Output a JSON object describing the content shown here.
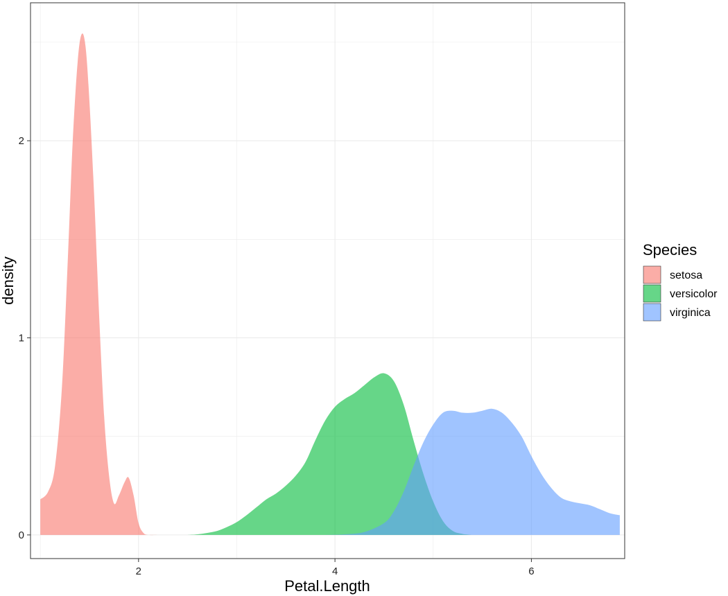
{
  "chart_data": {
    "type": "area",
    "xlabel": "Petal.Length",
    "ylabel": "density",
    "xlim": [
      0.9,
      6.95
    ],
    "ylim": [
      -0.12,
      2.7
    ],
    "x_ticks": [
      2,
      4,
      6
    ],
    "x_tick_labels": [
      "2",
      "4",
      "6"
    ],
    "y_ticks": [
      0,
      1,
      2
    ],
    "y_tick_labels": [
      "0",
      "1",
      "2"
    ],
    "grid": true,
    "legend": {
      "title": "Species",
      "position": "right"
    },
    "series": [
      {
        "name": "setosa",
        "color": "#F8766D",
        "points": [
          [
            1.0,
            0.18
          ],
          [
            1.08,
            0.22
          ],
          [
            1.15,
            0.35
          ],
          [
            1.22,
            0.75
          ],
          [
            1.28,
            1.4
          ],
          [
            1.33,
            2.0
          ],
          [
            1.38,
            2.4
          ],
          [
            1.42,
            2.54
          ],
          [
            1.46,
            2.48
          ],
          [
            1.5,
            2.2
          ],
          [
            1.55,
            1.7
          ],
          [
            1.6,
            1.1
          ],
          [
            1.65,
            0.6
          ],
          [
            1.7,
            0.3
          ],
          [
            1.75,
            0.16
          ],
          [
            1.8,
            0.2
          ],
          [
            1.86,
            0.27
          ],
          [
            1.9,
            0.29
          ],
          [
            1.95,
            0.2
          ],
          [
            2.0,
            0.06
          ],
          [
            2.05,
            0.01
          ],
          [
            2.1,
            0.0
          ],
          [
            2.2,
            0.0
          ]
        ]
      },
      {
        "name": "versicolor",
        "color": "#00BA38",
        "points": [
          [
            2.5,
            0.0
          ],
          [
            2.6,
            0.003
          ],
          [
            2.7,
            0.01
          ],
          [
            2.8,
            0.02
          ],
          [
            2.9,
            0.04
          ],
          [
            3.0,
            0.065
          ],
          [
            3.1,
            0.1
          ],
          [
            3.2,
            0.14
          ],
          [
            3.3,
            0.18
          ],
          [
            3.4,
            0.21
          ],
          [
            3.5,
            0.25
          ],
          [
            3.6,
            0.3
          ],
          [
            3.7,
            0.37
          ],
          [
            3.8,
            0.48
          ],
          [
            3.9,
            0.58
          ],
          [
            4.0,
            0.65
          ],
          [
            4.1,
            0.69
          ],
          [
            4.2,
            0.72
          ],
          [
            4.3,
            0.76
          ],
          [
            4.4,
            0.8
          ],
          [
            4.5,
            0.82
          ],
          [
            4.6,
            0.78
          ],
          [
            4.7,
            0.66
          ],
          [
            4.8,
            0.48
          ],
          [
            4.9,
            0.31
          ],
          [
            5.0,
            0.17
          ],
          [
            5.1,
            0.07
          ],
          [
            5.2,
            0.02
          ],
          [
            5.3,
            0.005
          ],
          [
            5.4,
            0.0
          ]
        ]
      },
      {
        "name": "virginica",
        "color": "#619CFF",
        "points": [
          [
            3.9,
            0.0
          ],
          [
            4.1,
            0.003
          ],
          [
            4.3,
            0.015
          ],
          [
            4.5,
            0.06
          ],
          [
            4.6,
            0.12
          ],
          [
            4.7,
            0.22
          ],
          [
            4.8,
            0.35
          ],
          [
            4.9,
            0.47
          ],
          [
            5.0,
            0.56
          ],
          [
            5.1,
            0.62
          ],
          [
            5.2,
            0.63
          ],
          [
            5.3,
            0.62
          ],
          [
            5.4,
            0.62
          ],
          [
            5.5,
            0.63
          ],
          [
            5.6,
            0.64
          ],
          [
            5.7,
            0.62
          ],
          [
            5.8,
            0.57
          ],
          [
            5.9,
            0.5
          ],
          [
            6.0,
            0.4
          ],
          [
            6.1,
            0.31
          ],
          [
            6.2,
            0.24
          ],
          [
            6.3,
            0.19
          ],
          [
            6.4,
            0.17
          ],
          [
            6.5,
            0.16
          ],
          [
            6.6,
            0.15
          ],
          [
            6.7,
            0.13
          ],
          [
            6.8,
            0.11
          ],
          [
            6.9,
            0.1
          ]
        ]
      }
    ]
  }
}
